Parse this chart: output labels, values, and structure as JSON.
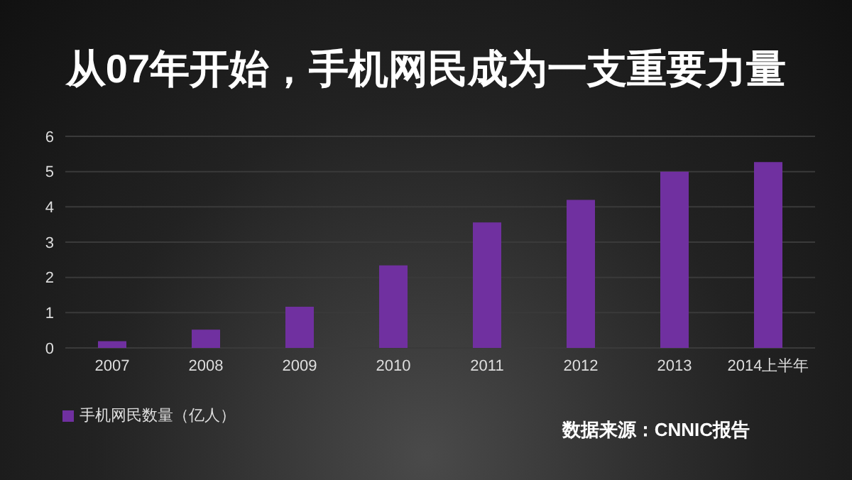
{
  "chart_data": {
    "type": "bar",
    "title": "从07年开始，手机网民成为一支重要力量",
    "categories": [
      "2007",
      "2008",
      "2009",
      "2010",
      "2011",
      "2012",
      "2013",
      "2014上半年"
    ],
    "series": [
      {
        "name": "手机网民数量（亿人）",
        "color": "#7030a0",
        "values": [
          0.19,
          0.52,
          1.17,
          2.34,
          3.56,
          4.2,
          5.0,
          5.27
        ]
      }
    ],
    "ylim": [
      0,
      6
    ],
    "yticks": [
      0,
      1,
      2,
      3,
      4,
      5,
      6
    ],
    "grid": "y",
    "legend": "bottom left",
    "annotations": [
      "数据来源：CNNIC报告"
    ]
  }
}
